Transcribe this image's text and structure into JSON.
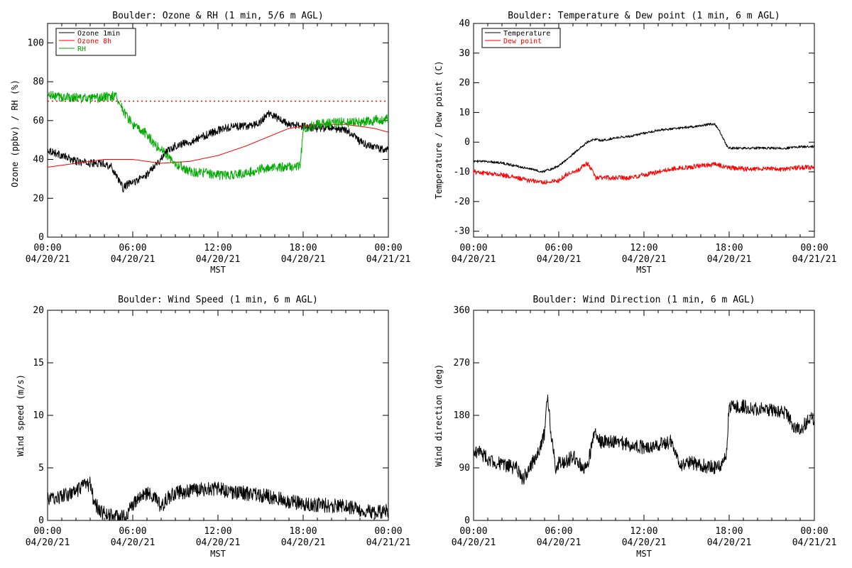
{
  "chart_data": [
    {
      "id": "ozone_rh",
      "type": "line",
      "title": "Boulder: Ozone & RH (1 min, 5/6 m AGL)",
      "xlabel": "MST",
      "ylabel": "Ozone (ppbv) / RH (%)",
      "x_ticks": [
        {
          "time": "00:00",
          "date": "04/20/21"
        },
        {
          "time": "06:00",
          "date": "04/20/21"
        },
        {
          "time": "12:00",
          "date": "04/20/21"
        },
        {
          "time": "18:00",
          "date": "04/20/21"
        },
        {
          "time": "00:00",
          "date": "04/21/21"
        }
      ],
      "x_range_hours": [
        0,
        24
      ],
      "ylim": [
        0,
        110
      ],
      "y_ticks": [
        0,
        20,
        40,
        60,
        80,
        100
      ],
      "reference_line": {
        "y": 70,
        "color": "#ff0000",
        "style": "dotted"
      },
      "legend": {
        "placement": "top-left",
        "entries": [
          {
            "label": "Ozone 1min",
            "color": "#000000"
          },
          {
            "label": "Ozone 8h",
            "color": "#ff0000"
          },
          {
            "label": "RH",
            "color": "#00aa00"
          }
        ]
      },
      "series": [
        {
          "name": "Ozone 1min",
          "color": "#000000",
          "noise": 2.0,
          "x": [
            0,
            1,
            2,
            3,
            4,
            4.5,
            5,
            5.3,
            5.6,
            6,
            6.5,
            7,
            7.5,
            8,
            8.3,
            9,
            10,
            11,
            12,
            13,
            14,
            15,
            15.5,
            16,
            17,
            18,
            19,
            20,
            21,
            21.5,
            22,
            23,
            24
          ],
          "y": [
            45,
            42,
            39,
            38,
            38,
            36,
            30,
            25,
            27,
            28,
            30,
            32,
            37,
            40,
            44,
            47,
            49,
            52,
            55,
            57,
            57,
            59,
            64,
            62,
            58,
            57,
            56,
            56,
            55,
            53,
            49,
            46,
            45
          ]
        },
        {
          "name": "Ozone 8h",
          "color": "#ff0000",
          "noise": 0,
          "x": [
            0,
            2,
            4,
            6,
            8,
            10,
            12,
            14,
            16,
            17,
            18,
            19,
            20,
            21,
            22,
            23,
            24
          ],
          "y": [
            36,
            38,
            40,
            40,
            38,
            39,
            42,
            47,
            53,
            56,
            57,
            58,
            58,
            58,
            57,
            56,
            54
          ]
        },
        {
          "name": "RH",
          "color": "#00aa00",
          "noise": 2.5,
          "x": [
            0,
            1,
            2,
            3,
            4,
            4.8,
            5,
            5.5,
            6,
            6.5,
            7,
            7.5,
            8,
            8.5,
            9,
            10,
            11,
            12,
            13,
            14,
            15,
            16,
            17,
            17.8,
            18,
            19,
            20,
            21,
            22,
            23,
            24
          ],
          "y": [
            73,
            72,
            72,
            71,
            72,
            73,
            70,
            63,
            58,
            55,
            53,
            48,
            45,
            42,
            38,
            34,
            33,
            32,
            32,
            33,
            35,
            36,
            36,
            37,
            56,
            58,
            59,
            59,
            59,
            60,
            61
          ]
        }
      ]
    },
    {
      "id": "temp_dew",
      "type": "line",
      "title": "Boulder: Temperature & Dew point (1 min, 6 m AGL)",
      "xlabel": "MST",
      "ylabel": "Temperature / Dew point (C)",
      "x_ticks": [
        {
          "time": "00:00",
          "date": "04/20/21"
        },
        {
          "time": "06:00",
          "date": "04/20/21"
        },
        {
          "time": "12:00",
          "date": "04/20/21"
        },
        {
          "time": "18:00",
          "date": "04/20/21"
        },
        {
          "time": "00:00",
          "date": "04/21/21"
        }
      ],
      "x_range_hours": [
        0,
        24
      ],
      "ylim": [
        -32,
        40
      ],
      "y_ticks": [
        -30,
        -20,
        -10,
        0,
        10,
        20,
        30,
        40
      ],
      "legend": {
        "placement": "top-left",
        "entries": [
          {
            "label": "Temperature",
            "color": "#000000"
          },
          {
            "label": "Dew point",
            "color": "#ff0000"
          }
        ]
      },
      "series": [
        {
          "name": "Temperature",
          "color": "#000000",
          "noise": 0.4,
          "x": [
            0,
            1,
            2,
            3,
            4,
            4.8,
            5.5,
            6,
            6.5,
            7,
            7.5,
            8,
            8.5,
            9,
            10,
            11,
            12,
            13,
            14,
            15,
            16,
            16.5,
            17,
            17.3,
            17.8,
            18,
            19,
            20,
            21,
            22,
            23,
            24
          ],
          "y": [
            -6.5,
            -6.5,
            -7,
            -8,
            -9,
            -10,
            -9,
            -8,
            -6,
            -4,
            -2,
            0,
            1,
            0.5,
            1.5,
            2,
            3,
            4,
            4.5,
            5,
            5.5,
            6,
            6,
            4,
            -1,
            -2,
            -2,
            -2,
            -2,
            -2,
            -1.5,
            -1.5
          ]
        },
        {
          "name": "Dew point",
          "color": "#ff0000",
          "noise": 0.8,
          "x": [
            0,
            1,
            2,
            3,
            4,
            5,
            6,
            6.5,
            7,
            7.5,
            8,
            8.3,
            8.6,
            9,
            10,
            11,
            12,
            13,
            14,
            15,
            16,
            17,
            18,
            19,
            20,
            21,
            22,
            23,
            24
          ],
          "y": [
            -10,
            -10.5,
            -11,
            -12,
            -13,
            -13.5,
            -13,
            -11,
            -10,
            -9,
            -7,
            -9,
            -12,
            -12,
            -12,
            -12,
            -11,
            -10,
            -9,
            -8.5,
            -8,
            -7.5,
            -8.5,
            -9,
            -9,
            -9,
            -9,
            -8.5,
            -8.5
          ]
        }
      ]
    },
    {
      "id": "wind_speed",
      "type": "line",
      "title": "Boulder: Wind Speed (1 min, 6 m AGL)",
      "xlabel": "MST",
      "ylabel": "Wind speed (m/s)",
      "x_ticks": [
        {
          "time": "00:00",
          "date": "04/20/21"
        },
        {
          "time": "06:00",
          "date": "04/20/21"
        },
        {
          "time": "12:00",
          "date": "04/20/21"
        },
        {
          "time": "18:00",
          "date": "04/20/21"
        },
        {
          "time": "00:00",
          "date": "04/21/21"
        }
      ],
      "x_range_hours": [
        0,
        24
      ],
      "ylim": [
        0,
        20
      ],
      "y_ticks": [
        0,
        5,
        10,
        15,
        20
      ],
      "series": [
        {
          "name": "",
          "color": "#000000",
          "noise": 0.7,
          "x": [
            0,
            1,
            2,
            2.5,
            3,
            3.3,
            3.8,
            4.2,
            5,
            5.5,
            6,
            6.5,
            7,
            7.5,
            8,
            8.5,
            9,
            10,
            11,
            12,
            13,
            14,
            15,
            16,
            17,
            18,
            19,
            20,
            21,
            22,
            23,
            24
          ],
          "y": [
            2,
            2.3,
            2.7,
            3.2,
            3.5,
            1.6,
            0.8,
            0.6,
            0.3,
            0.3,
            1.5,
            2.2,
            2.6,
            2.2,
            1.3,
            2.2,
            2.6,
            2.8,
            3.0,
            3.0,
            2.7,
            2.6,
            2.4,
            2.2,
            1.8,
            1.6,
            1.5,
            1.4,
            1.3,
            1.0,
            0.8,
            0.9
          ]
        }
      ]
    },
    {
      "id": "wind_dir",
      "type": "line",
      "title": "Boulder: Wind Direction (1 min, 6 m AGL)",
      "xlabel": "MST",
      "ylabel": "Wind direction (deg)",
      "x_ticks": [
        {
          "time": "00:00",
          "date": "04/20/21"
        },
        {
          "time": "06:00",
          "date": "04/20/21"
        },
        {
          "time": "12:00",
          "date": "04/20/21"
        },
        {
          "time": "18:00",
          "date": "04/20/21"
        },
        {
          "time": "00:00",
          "date": "04/21/21"
        }
      ],
      "x_range_hours": [
        0,
        24
      ],
      "ylim": [
        0,
        360
      ],
      "y_ticks": [
        0,
        90,
        180,
        270,
        360
      ],
      "series": [
        {
          "name": "",
          "color": "#000000",
          "noise": 12,
          "x": [
            0,
            0.3,
            1,
            2,
            3,
            3.5,
            4,
            4.5,
            5,
            5.2,
            5.5,
            5.8,
            6,
            6.5,
            7,
            7.5,
            8,
            8.5,
            9,
            10,
            11,
            12,
            13,
            14,
            14.5,
            15,
            16,
            17,
            17.5,
            17.8,
            18,
            19,
            20,
            21,
            22,
            22.5,
            23,
            23.5,
            24
          ],
          "y": [
            115,
            120,
            105,
            95,
            90,
            70,
            95,
            110,
            150,
            210,
            140,
            90,
            100,
            100,
            110,
            95,
            90,
            150,
            135,
            135,
            130,
            125,
            130,
            135,
            90,
            100,
            95,
            90,
            95,
            110,
            195,
            195,
            190,
            190,
            185,
            160,
            155,
            170,
            175
          ]
        }
      ]
    }
  ]
}
